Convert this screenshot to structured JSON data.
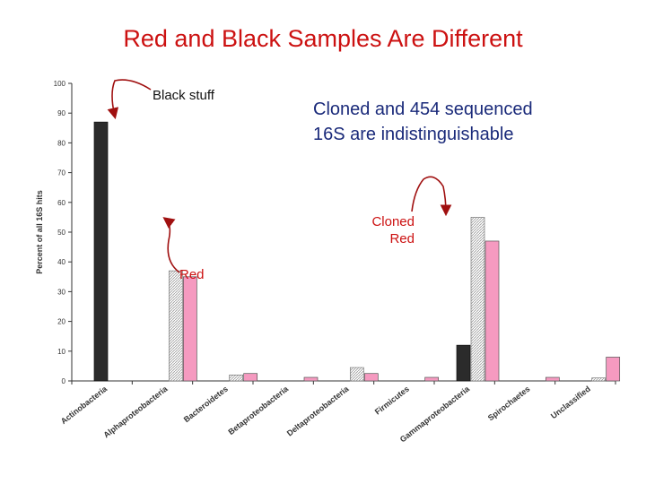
{
  "slide": {
    "title": "Red and Black Samples Are Different",
    "annotations": {
      "black_stuff": "Black stuff",
      "cloned_sequenced_line1": "Cloned and 454 sequenced",
      "cloned_sequenced_line2": "16S are indistinguishable",
      "cloned_red_line1": "Cloned",
      "cloned_red_line2": "Red",
      "red": "Red"
    }
  },
  "colors": {
    "black_sample": "#2b2b2b",
    "cloned_red_sample": "#e9e9e9",
    "red_454_sample": "#f59ac0",
    "annotation_red": "#cc1111",
    "annotation_blue": "#1a2a7a",
    "arrow": "#a01010"
  },
  "chart_data": {
    "type": "bar",
    "ylabel": "Percent of all 16S hits",
    "ylim": [
      0,
      100
    ],
    "yticks": [
      0,
      10,
      20,
      30,
      40,
      50,
      60,
      70,
      80,
      90,
      100
    ],
    "grid": false,
    "categories": [
      "Actinobacteria",
      "Alphaproteobacteria",
      "Bacteroidetes",
      "Betaproteobacteria",
      "Deltaproteobacteria",
      "Firmicutes",
      "Gammaproteobacteria",
      "Spirochaetes",
      "Unclassified"
    ],
    "series": [
      {
        "key": "black",
        "values": [
          87,
          0,
          0,
          0,
          0,
          0,
          12,
          0,
          0
        ]
      },
      {
        "key": "cloned_red",
        "values": [
          0,
          37,
          2,
          0,
          4.5,
          0,
          55,
          0,
          1
        ]
      },
      {
        "key": "red_454",
        "values": [
          0,
          35,
          2.5,
          1.2,
          2.5,
          1.2,
          47,
          1.2,
          8
        ]
      }
    ]
  }
}
